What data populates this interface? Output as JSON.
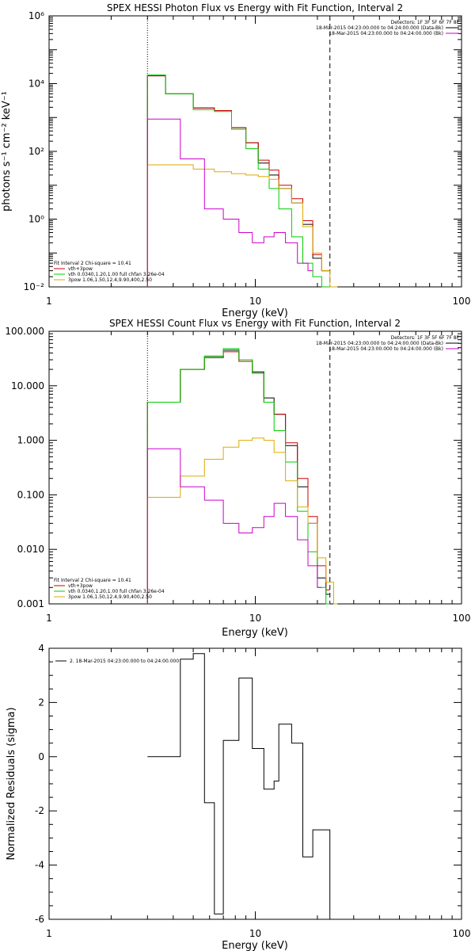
{
  "chart_data": [
    {
      "type": "line",
      "title": "SPEX HESSI Photon Flux vs Energy with Fit Function, Interval 2",
      "xlabel": "Energy (keV)",
      "ylabel": "photons s⁻¹ cm⁻² keV⁻¹",
      "xscale": "log",
      "yscale": "log",
      "xlim": [
        1,
        100
      ],
      "ylim": [
        0.01,
        1000000
      ],
      "x_ticks": [
        1,
        10,
        100
      ],
      "x_tick_labels": [
        "1",
        "10",
        "100"
      ],
      "y_ticks": [
        0.01,
        1,
        100,
        10000,
        1000000
      ],
      "y_tick_labels": [
        "10⁻²",
        "10⁰",
        "10²",
        "10⁴",
        "10⁶"
      ],
      "vlines": [
        {
          "x": 3.0,
          "style": "dotted"
        },
        {
          "x": 23.0,
          "style": "dashed"
        }
      ],
      "legend_tr": {
        "position": "top-right",
        "header": "Detectors: 1F 3F 5F 6F 7F 8F",
        "entries": [
          {
            "text": "18-Mar-2015 04:23:00.000 to 04:24:00.000 (Data-Bk)",
            "color": "#000000"
          },
          {
            "text": "18-Mar-2015 04:23:00.000 to 04:24:00.000 (Bk)",
            "color": "#cc00cc"
          }
        ]
      },
      "legend_bl": {
        "position": "bottom-left",
        "header": "Fit Interval 2   Chi-square = 10.41",
        "entries": [
          {
            "text": "vth+3pow",
            "color": "#cc0000"
          },
          {
            "text": "vth 0.0340,1.20,1.00  full chfan 3.26e-04",
            "color": "#00cc00"
          },
          {
            "text": "3pow 1.06,1.50,12.4,9.90,400,2.50",
            "color": "#ddaa00"
          }
        ]
      },
      "series": [
        {
          "color": "#000000",
          "edges": [
            3.0,
            3.67,
            4.33,
            5.0,
            5.67,
            6.33,
            7.0,
            7.67,
            8.33,
            9.0,
            9.67,
            10.33,
            11.0,
            11.67,
            12.33,
            13.0,
            14.0,
            15.0,
            16.0,
            17.0,
            18.0,
            19.0,
            20.0,
            21.0,
            22.0,
            23.0
          ],
          "values": [
            17000,
            5000,
            5000,
            1900,
            1900,
            1600,
            1600,
            500,
            500,
            180,
            180,
            45,
            45,
            20,
            20,
            8,
            8,
            3,
            3,
            0.7,
            0.7,
            0.07,
            0.07,
            0.03,
            0.03
          ]
        },
        {
          "color": "#cc0000",
          "edges": [
            3.0,
            3.67,
            4.33,
            5.0,
            5.67,
            6.33,
            7.0,
            7.67,
            8.33,
            9.0,
            9.67,
            10.33,
            11.0,
            11.67,
            12.33,
            13.0,
            14.0,
            15.0,
            16.0,
            17.0,
            18.0,
            19.0,
            20.0,
            21.0,
            22.0,
            23.0
          ],
          "values": [
            17000,
            5000,
            5000,
            1900,
            1900,
            1600,
            1600,
            500,
            500,
            180,
            180,
            55,
            55,
            28,
            28,
            10,
            10,
            4,
            4,
            0.9,
            0.9,
            0.09,
            0.09,
            0.03,
            0.03
          ]
        },
        {
          "color": "#00cc00",
          "edges": [
            3.0,
            3.67,
            4.33,
            5.0,
            5.67,
            6.33,
            7.0,
            7.67,
            8.33,
            9.0,
            9.67,
            10.33,
            11.0,
            11.67,
            12.33,
            13.0,
            14.0,
            15.0,
            16.0,
            17.0,
            18.0,
            19.0,
            20.0,
            21.0,
            22.0,
            23.0
          ],
          "values": [
            18000,
            5000,
            5000,
            1700,
            1700,
            1500,
            1500,
            450,
            450,
            120,
            120,
            30,
            30,
            8,
            8,
            2,
            2,
            0.3,
            0.3,
            0.05,
            0.05,
            0.02,
            0.02,
            0.01,
            0.01
          ]
        },
        {
          "color": "#ddaa00",
          "edges": [
            3.0,
            3.67,
            4.33,
            5.0,
            5.67,
            6.33,
            7.0,
            7.67,
            8.33,
            9.0,
            9.67,
            10.33,
            11.0,
            11.67,
            12.33,
            13.0,
            14.0,
            15.0,
            16.0,
            17.0,
            18.0,
            19.0,
            20.0,
            21.0,
            22.0,
            23.0,
            24.0,
            25.0
          ],
          "values": [
            40,
            40,
            40,
            30,
            30,
            25,
            25,
            22,
            22,
            20,
            20,
            18,
            18,
            15,
            15,
            8,
            8,
            3,
            3,
            0.6,
            0.6,
            0.1,
            0.1,
            0.03,
            0.03,
            0.01,
            0.01
          ]
        },
        {
          "color": "#cc00cc",
          "edges": [
            3.0,
            3.67,
            4.33,
            5.0,
            5.67,
            6.33,
            7.0,
            7.67,
            8.33,
            9.0,
            9.67,
            10.33,
            11.0,
            11.67,
            12.33,
            13.0,
            14.0,
            15.0,
            16.0,
            17.0,
            18.0,
            19.0
          ],
          "values": [
            900,
            900,
            60,
            60,
            2,
            2,
            1,
            1,
            0.4,
            0.4,
            0.2,
            0.2,
            0.3,
            0.3,
            0.4,
            0.4,
            0.2,
            0.2,
            0.05,
            0.05,
            0.03
          ]
        }
      ]
    },
    {
      "type": "line",
      "title": "SPEX HESSI Count Flux vs Energy with Fit Function, Interval 2",
      "xlabel": "Energy (keV)",
      "ylabel": "",
      "xscale": "log",
      "yscale": "log",
      "xlim": [
        1,
        100
      ],
      "ylim": [
        0.001,
        100
      ],
      "x_ticks": [
        1,
        10,
        100
      ],
      "x_tick_labels": [
        "1",
        "10",
        "100"
      ],
      "y_ticks": [
        0.001,
        0.01,
        0.1,
        1,
        10,
        100
      ],
      "y_tick_labels": [
        "0.001",
        "0.010",
        "0.100",
        "1.000",
        "10.000",
        "100.000"
      ],
      "vlines": [
        {
          "x": 3.0,
          "style": "dotted"
        },
        {
          "x": 23.0,
          "style": "dashed"
        }
      ],
      "legend_tr": {
        "position": "top-right",
        "header": "Detectors: 1F 3F 5F 6F 7F 8F",
        "entries": [
          {
            "text": "18-Mar-2015 04:23:00.000 to 04:24:00.000 (Data-Bk)",
            "color": "#000000"
          },
          {
            "text": "18-Mar-2015 04:23:00.000 to 04:24:00.000 (Bk)",
            "color": "#cc00cc"
          }
        ]
      },
      "legend_bl": {
        "position": "bottom-left",
        "header": "Fit Interval 2   Chi-square = 10.41",
        "entries": [
          {
            "text": "vth+3pow",
            "color": "#cc0000"
          },
          {
            "text": "vth 0.0340,1.20,1.00  full chfan 3.26e-04",
            "color": "#00cc00"
          },
          {
            "text": "3pow 1.06,1.50,12.4,9.90,400,2.50",
            "color": "#ddaa00"
          }
        ]
      },
      "series": [
        {
          "color": "#000000",
          "edges": [
            3.0,
            3.67,
            4.33,
            5.0,
            5.67,
            6.33,
            7.0,
            7.67,
            8.33,
            9.0,
            9.67,
            10.33,
            11.0,
            11.67,
            12.33,
            13.0,
            14.0,
            15.0,
            16.0,
            17.0,
            18.0,
            19.0,
            20.0,
            21.0,
            22.0,
            23.0
          ],
          "values": [
            5,
            5,
            20,
            20,
            33,
            33,
            45,
            45,
            30,
            30,
            18,
            18,
            6,
            6,
            3,
            3,
            0.8,
            0.8,
            0.14,
            0.14,
            0.03,
            0.03,
            0.003,
            0.003,
            0.0015
          ]
        },
        {
          "color": "#cc0000",
          "edges": [
            3.0,
            3.67,
            4.33,
            5.0,
            5.67,
            6.33,
            7.0,
            7.67,
            8.33,
            9.0,
            9.67,
            10.33,
            11.0,
            11.67,
            12.33,
            13.0,
            14.0,
            15.0,
            16.0,
            17.0,
            18.0,
            19.0,
            20.0,
            21.0,
            22.0,
            23.0
          ],
          "values": [
            5,
            5,
            20,
            20,
            35,
            35,
            42,
            42,
            28,
            28,
            17,
            17,
            5,
            5,
            3,
            3,
            0.9,
            0.9,
            0.2,
            0.2,
            0.04,
            0.04,
            0.005,
            0.005,
            0.0018
          ]
        },
        {
          "color": "#00cc00",
          "edges": [
            3.0,
            3.67,
            4.33,
            5.0,
            5.67,
            6.33,
            7.0,
            7.67,
            8.33,
            9.0,
            9.67,
            10.33,
            11.0,
            11.67,
            12.33,
            13.0,
            14.0,
            15.0,
            16.0,
            17.0,
            18.0,
            19.0,
            20.0,
            21.0,
            22.0,
            23.0
          ],
          "values": [
            5,
            5,
            20,
            20,
            35,
            35,
            48,
            48,
            30,
            30,
            17,
            17,
            5,
            5,
            1.5,
            1.5,
            0.4,
            0.4,
            0.05,
            0.05,
            0.009,
            0.009,
            0.002,
            0.002,
            0.001
          ]
        },
        {
          "color": "#ddaa00",
          "edges": [
            3.0,
            3.67,
            4.33,
            5.0,
            5.67,
            6.33,
            7.0,
            7.67,
            8.33,
            9.0,
            9.67,
            10.33,
            11.0,
            11.67,
            12.33,
            13.0,
            14.0,
            15.0,
            16.0,
            17.0,
            18.0,
            19.0,
            20.0,
            21.0,
            22.0,
            23.0,
            24.0,
            25.0
          ],
          "values": [
            0.09,
            0.09,
            0.22,
            0.22,
            0.45,
            0.45,
            0.75,
            0.75,
            1.0,
            1.0,
            1.1,
            1.1,
            1.0,
            1.0,
            0.6,
            0.6,
            0.18,
            0.18,
            0.06,
            0.06,
            0.03,
            0.03,
            0.007,
            0.007,
            0.0025,
            0.0025,
            0.001
          ]
        },
        {
          "color": "#cc00cc",
          "edges": [
            3.0,
            3.67,
            4.33,
            5.0,
            5.67,
            6.33,
            7.0,
            7.67,
            8.33,
            9.0,
            9.67,
            10.33,
            11.0,
            11.67,
            12.33,
            13.0,
            14.0,
            15.0,
            16.0,
            17.0,
            18.0,
            19.0,
            20.0,
            21.0
          ],
          "values": [
            0.7,
            0.7,
            0.14,
            0.14,
            0.08,
            0.08,
            0.03,
            0.03,
            0.02,
            0.02,
            0.025,
            0.025,
            0.04,
            0.04,
            0.07,
            0.07,
            0.04,
            0.04,
            0.015,
            0.015,
            0.005,
            0.005,
            0.002
          ]
        }
      ]
    },
    {
      "type": "line",
      "title": "",
      "xlabel": "Energy (keV)",
      "ylabel": "Normalized Residuals (sigma)",
      "xscale": "log",
      "yscale": "linear",
      "xlim": [
        1,
        100
      ],
      "ylim": [
        -6,
        4
      ],
      "x_ticks": [
        1,
        10,
        100
      ],
      "x_tick_labels": [
        "1",
        "10",
        "100"
      ],
      "y_ticks": [
        -6,
        -4,
        -2,
        0,
        2,
        4
      ],
      "y_tick_labels": [
        "-6",
        "-4",
        "-2",
        "0",
        "2",
        "4"
      ],
      "legend_tl": {
        "position": "top-left",
        "entries": [
          {
            "text": "2. 18-Mar-2015 04:23:00.000 to 04:24:00.000",
            "color": "#000000"
          }
        ]
      },
      "series": [
        {
          "color": "#000000",
          "edges": [
            3.0,
            3.67,
            4.33,
            5.0,
            5.67,
            6.33,
            7.0,
            7.67,
            8.33,
            9.0,
            9.67,
            10.33,
            11.0,
            11.67,
            12.33,
            13.0,
            14.0,
            15.0,
            16.0,
            17.0,
            18.0,
            19.0,
            20.0,
            21.0,
            22.0,
            23.0
          ],
          "values": [
            0,
            0,
            3.6,
            3.8,
            -1.7,
            -5.8,
            0.6,
            0.6,
            2.9,
            2.9,
            0.3,
            0.3,
            -1.2,
            -1.2,
            -0.9,
            1.2,
            1.2,
            0.5,
            0.5,
            -3.7,
            -3.7,
            -2.7,
            -2.7,
            -2.7,
            -2.7
          ]
        }
      ]
    }
  ]
}
